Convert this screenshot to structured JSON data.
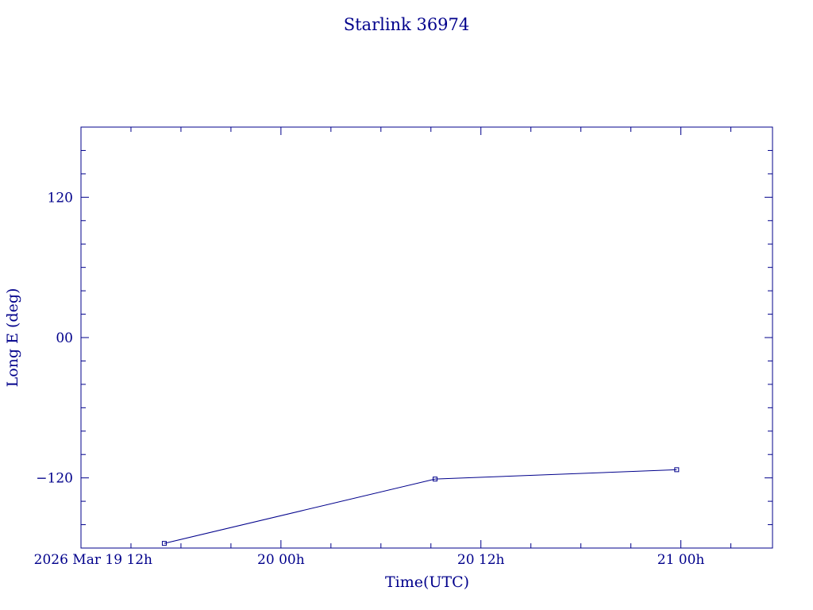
{
  "chart_data": {
    "type": "line",
    "title": "Starlink 36974",
    "xlabel": "Time(UTC)",
    "ylabel": "Long E (deg)",
    "x_unit": "UTC",
    "xlim": [
      "2026-03-19T12:00Z",
      "2026-03-21T05:30Z"
    ],
    "ylim": [
      -180,
      180
    ],
    "x_tick_labels": [
      {
        "at": "2026-03-19T12:00Z",
        "label": "2026 Mar 19  12h"
      },
      {
        "at": "2026-03-20T00:00Z",
        "label": "20  00h"
      },
      {
        "at": "2026-03-20T12:00Z",
        "label": "20  12h"
      },
      {
        "at": "2026-03-21T00:00Z",
        "label": "21  00h"
      }
    ],
    "y_tick_labels": [
      {
        "at": 120,
        "label": "120"
      },
      {
        "at": 0,
        "label": "00"
      },
      {
        "at": -120,
        "label": "−120"
      }
    ],
    "series": [
      {
        "points": [
          {
            "x": "2026-03-19T17:00Z",
            "y": -176
          },
          {
            "x": "2026-03-20T09:15Z",
            "y": -121
          },
          {
            "x": "2026-03-20T23:45Z",
            "y": -113
          }
        ]
      }
    ],
    "grid": false,
    "legend": "none",
    "color": "#00008b"
  }
}
